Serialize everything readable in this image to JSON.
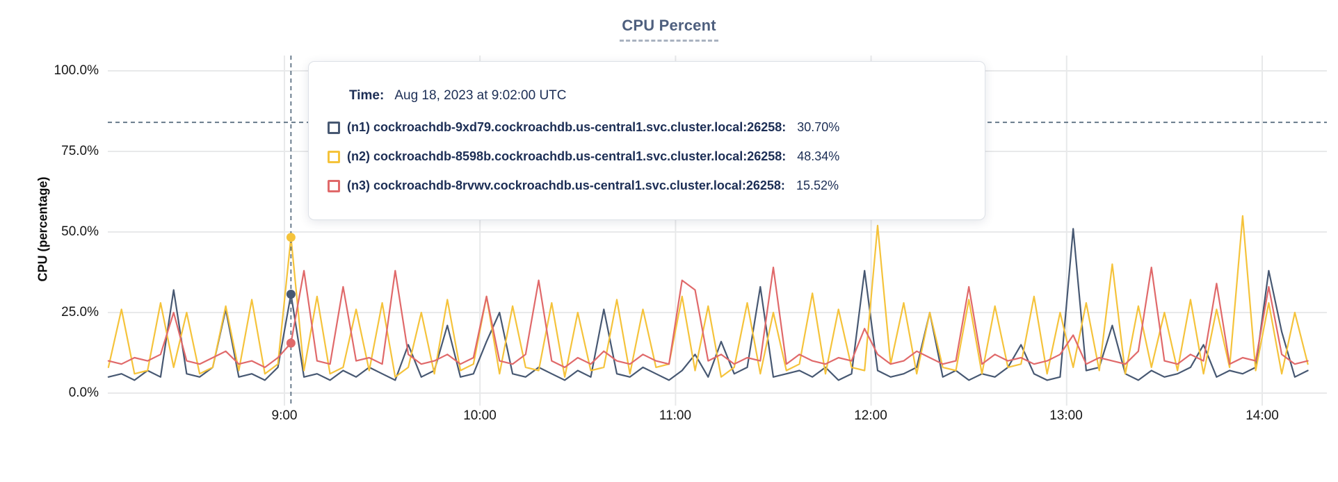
{
  "tooltip": {
    "time_label": "Time:",
    "time_value": "Aug 18, 2023 at 9:02:00 UTC",
    "rows": [
      {
        "label": "(n1) cockroachdb-9xd79.cockroachdb.us-central1.svc.cluster.local:26258:",
        "value": "30.70%"
      },
      {
        "label": "(n2) cockroachdb-8598b.cockroachdb.us-central1.svc.cluster.local:26258:",
        "value": "48.34%"
      },
      {
        "label": "(n3) cockroachdb-8rvwv.cockroachdb.us-central1.svc.cluster.local:26258:",
        "value": "15.52%"
      }
    ]
  },
  "colors": {
    "n1": "#475872",
    "n2": "#F5C33B",
    "n3": "#E0696A",
    "grid": "#e8e9ea",
    "crosshair": "#5d7183",
    "title": "#4e5f7e",
    "tooltip_text": "#1c2e55"
  },
  "chart_data": {
    "type": "line",
    "title": "CPU Percent",
    "xlabel": "",
    "ylabel": "CPU (percentage)",
    "ylim": [
      0,
      100
    ],
    "grid": true,
    "legend_position": "tooltip-overlay",
    "x_unit": "minutes after 08:06 UTC",
    "x_step_minutes": 4,
    "x_ticks": [
      {
        "label": "9:00",
        "minute": 54
      },
      {
        "label": "10:00",
        "minute": 114
      },
      {
        "label": "11:00",
        "minute": 174
      },
      {
        "label": "12:00",
        "minute": 234
      },
      {
        "label": "13:00",
        "minute": 294
      },
      {
        "label": "14:00",
        "minute": 354
      }
    ],
    "y_ticks": [
      {
        "label": "0.0%",
        "value": 0
      },
      {
        "label": "25.0%",
        "value": 25
      },
      {
        "label": "50.0%",
        "value": 50
      },
      {
        "label": "75.0%",
        "value": 75
      },
      {
        "label": "100.0%",
        "value": 100
      }
    ],
    "hover": {
      "minute": 56,
      "time": "Aug 18, 2023 at 9:02:00 UTC",
      "crosshair_y_percent": 84,
      "values": {
        "n1": 30.7,
        "n2": 48.34,
        "n3": 15.52
      }
    },
    "series": [
      {
        "id": "n1",
        "name": "(n1) cockroachdb-9xd79.cockroachdb.us-central1.svc.cluster.local:26258",
        "color": "#475872",
        "values": [
          5,
          6,
          4,
          7,
          5,
          32,
          6,
          5,
          8,
          26,
          5,
          6,
          4,
          8,
          30.7,
          5,
          6,
          4,
          7,
          5,
          8,
          6,
          4,
          15,
          5,
          7,
          21,
          5,
          6,
          16,
          25,
          6,
          5,
          8,
          6,
          4,
          7,
          5,
          26,
          6,
          5,
          8,
          6,
          4,
          7,
          12,
          5,
          16,
          6,
          8,
          33,
          5,
          6,
          7,
          5,
          8,
          4,
          6,
          38,
          7,
          5,
          6,
          8,
          25,
          5,
          7,
          4,
          6,
          5,
          8,
          15,
          6,
          4,
          5,
          51,
          7,
          8,
          21,
          6,
          4,
          7,
          5,
          6,
          8,
          15,
          5,
          7,
          6,
          8,
          38,
          19,
          5,
          7
        ]
      },
      {
        "id": "n2",
        "name": "(n2) cockroachdb-8598b.cockroachdb.us-central1.svc.cluster.local:26258",
        "color": "#F5C33B",
        "values": [
          8,
          26,
          6,
          7,
          28,
          8,
          25,
          6,
          8,
          27,
          7,
          29,
          6,
          9,
          48.34,
          7,
          30,
          6,
          8,
          26,
          7,
          28,
          5,
          8,
          25,
          6,
          29,
          7,
          9,
          30,
          6,
          27,
          8,
          7,
          28,
          5,
          25,
          7,
          8,
          29,
          6,
          26,
          8,
          9,
          30,
          7,
          27,
          5,
          8,
          28,
          6,
          25,
          7,
          9,
          31,
          6,
          26,
          8,
          7,
          52,
          9,
          28,
          6,
          25,
          8,
          7,
          29,
          6,
          27,
          8,
          9,
          30,
          6,
          25,
          8,
          28,
          7,
          40,
          6,
          27,
          8,
          25,
          7,
          29,
          6,
          26,
          8,
          55,
          7,
          28,
          6,
          25,
          9
        ]
      },
      {
        "id": "n3",
        "name": "(n3) cockroachdb-8rvwv.cockroachdb.us-central1.svc.cluster.local:26258",
        "color": "#E0696A",
        "values": [
          10,
          9,
          11,
          10,
          12,
          25,
          10,
          9,
          11,
          13,
          9,
          10,
          8,
          11,
          15.52,
          38,
          10,
          9,
          33,
          10,
          11,
          9,
          38,
          12,
          9,
          10,
          12,
          9,
          11,
          30,
          10,
          9,
          12,
          35,
          10,
          8,
          11,
          9,
          13,
          10,
          9,
          12,
          10,
          9,
          35,
          32,
          10,
          12,
          9,
          11,
          10,
          39,
          9,
          12,
          10,
          9,
          11,
          10,
          20,
          12,
          9,
          10,
          13,
          11,
          9,
          10,
          33,
          9,
          12,
          10,
          11,
          9,
          10,
          12,
          18,
          9,
          11,
          10,
          9,
          13,
          39,
          10,
          9,
          12,
          10,
          34,
          9,
          11,
          10,
          33,
          12,
          9,
          10
        ]
      }
    ]
  }
}
